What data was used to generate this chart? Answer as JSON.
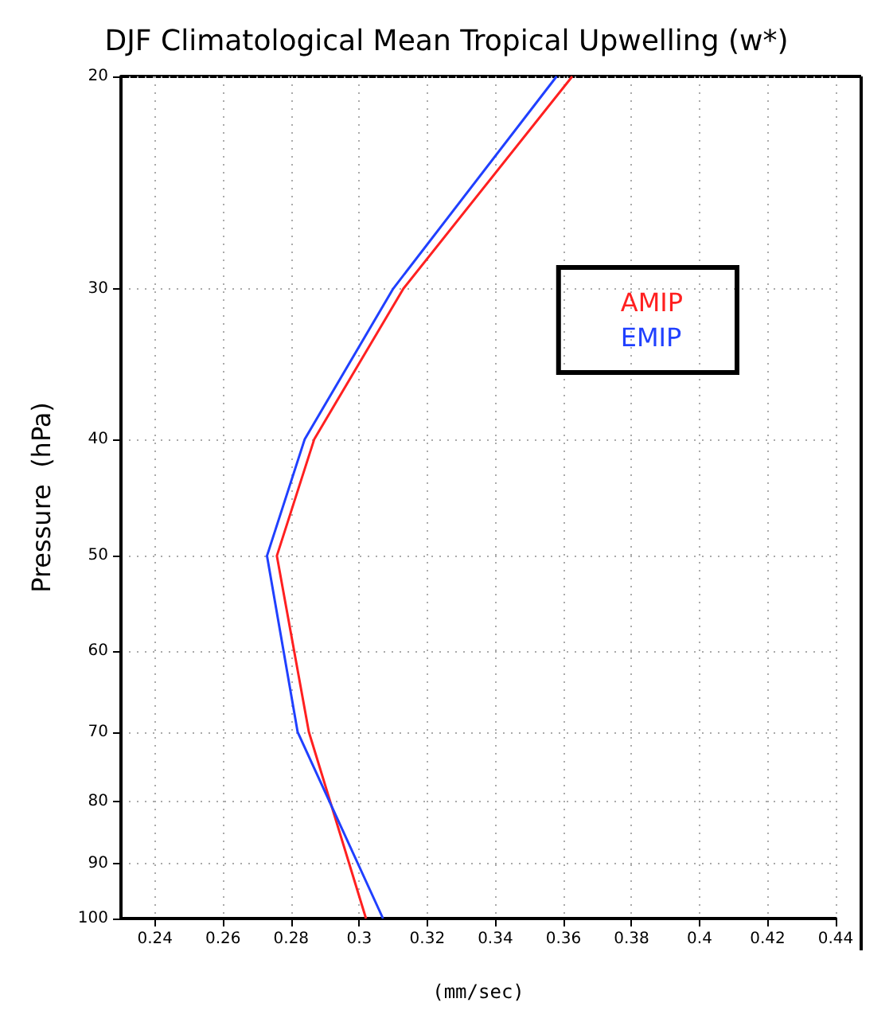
{
  "chart_data": {
    "type": "line",
    "title": "DJF Climatological Mean Tropical Upwelling (w*)",
    "xlabel": "(mm/sec)",
    "ylabel": "Pressure  (hPa)",
    "x": [
      0.302,
      0.2852,
      0.2758,
      0.2868,
      0.313,
      0.3626
    ],
    "series": [
      {
        "name": "AMIP",
        "color": "#ff2020",
        "values": [
          100,
          70,
          50,
          40,
          30,
          20
        ]
      },
      {
        "name": "EMIP",
        "color": "#2040ff",
        "values": [
          100,
          70,
          50,
          40,
          30,
          20
        ],
        "x": [
          0.307,
          0.2819,
          0.2729,
          0.284,
          0.31,
          0.358
        ]
      }
    ],
    "xlim": [
      0.23,
      0.44
    ],
    "xticks": [
      0.24,
      0.26,
      0.28,
      0.3,
      0.32,
      0.34,
      0.36,
      0.38,
      0.4,
      0.42,
      0.44
    ],
    "ylim": [
      100,
      20
    ],
    "yticks": [
      20,
      30,
      40,
      50,
      60,
      70,
      80,
      90,
      100
    ],
    "log": "y",
    "grid": true,
    "legend": "top right",
    "marker": "none",
    "line_style": "solid"
  }
}
